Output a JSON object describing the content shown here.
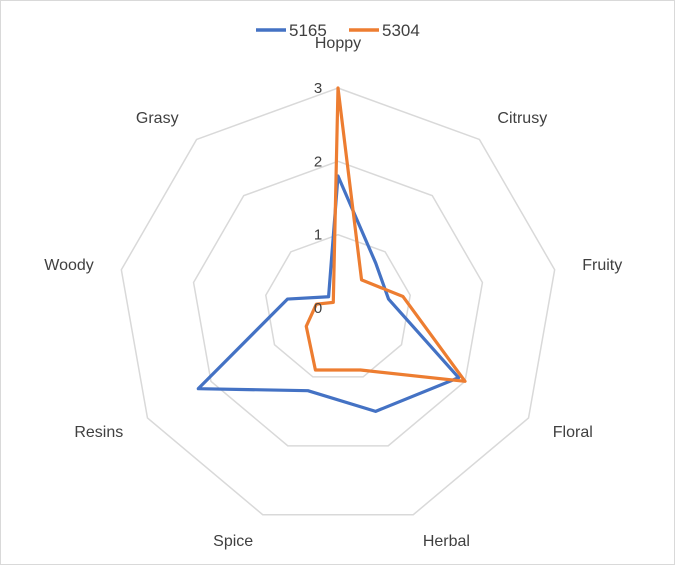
{
  "chart_data": {
    "type": "radar",
    "title": "",
    "categories": [
      "Hoppy",
      "Citrusy",
      "Fruity",
      "Floral",
      "Herbal",
      "Spice",
      "Resins",
      "Woody",
      "Grasy"
    ],
    "rlim": [
      0,
      3
    ],
    "ticks": [
      "0",
      "1",
      "2",
      "3"
    ],
    "series": [
      {
        "name": "5165",
        "color": "#4472c4",
        "values": [
          1.8,
          0.8,
          0.7,
          1.9,
          1.5,
          1.2,
          2.2,
          0.7,
          0.2
        ]
      },
      {
        "name": "5304",
        "color": "#ed7d31",
        "values": [
          3.0,
          0.5,
          0.9,
          2.0,
          0.9,
          0.9,
          0.5,
          0.3,
          0.1
        ]
      }
    ],
    "legend_position": "top",
    "grid": true
  }
}
